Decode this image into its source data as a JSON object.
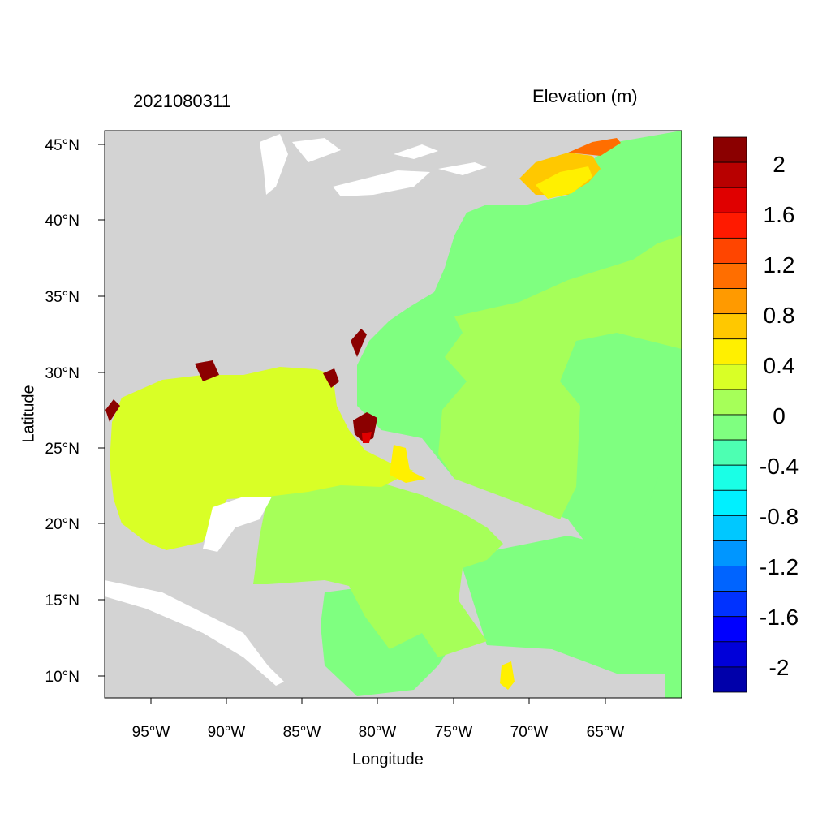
{
  "header": {
    "time_label": "2021080311",
    "variable_label": "Elevation (m)"
  },
  "axes": {
    "xlabel": "Longitude",
    "ylabel": "Latitude",
    "x_ticks": [
      "95°W",
      "90°W",
      "85°W",
      "80°W",
      "75°W",
      "70°W",
      "65°W"
    ],
    "y_ticks": [
      "45°N",
      "40°N",
      "35°N",
      "30°N",
      "25°N",
      "20°N",
      "15°N",
      "10°N"
    ]
  },
  "colorbar": {
    "labels": [
      "2",
      "1.6",
      "1.2",
      "0.8",
      "0.4",
      "0",
      "-0.4",
      "-0.8",
      "-1.2",
      "-1.6",
      "-2"
    ],
    "colors": [
      "#8b0000",
      "#b80000",
      "#e00000",
      "#ff1a00",
      "#ff4500",
      "#ff6e00",
      "#ff9a00",
      "#ffc800",
      "#fff000",
      "#d9ff26",
      "#a6ff59",
      "#7fff80",
      "#4dffb2",
      "#1affe6",
      "#00f0ff",
      "#00c8ff",
      "#0096ff",
      "#0064ff",
      "#0032ff",
      "#0000ff",
      "#0000d9",
      "#0000aa"
    ]
  },
  "map": {
    "land_color": "#d3d3d3",
    "gulf_color": "#d9ff26",
    "caribbean_color": "#a6ff59",
    "atlantic_color": "#7fff80"
  }
}
